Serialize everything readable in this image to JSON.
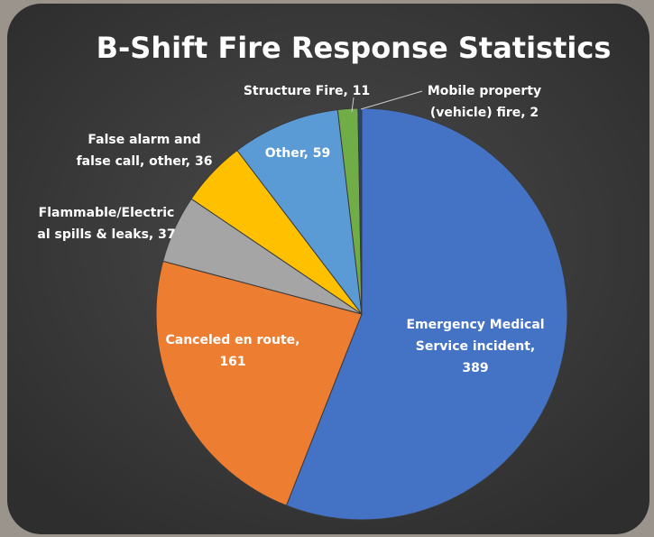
{
  "chart_data": {
    "type": "pie",
    "title": "B-Shift Fire Response Statistics",
    "labels": [
      [
        "Emergency Medical",
        "Service incident,",
        "389"
      ],
      [
        "Canceled en route,",
        "161"
      ],
      [
        "Flammable/Electric",
        "al spills & leaks, 37"
      ],
      [
        "False alarm and",
        "false call, other, 36"
      ],
      [
        "Other, 59"
      ],
      [
        "Structure Fire, 11"
      ],
      [
        "Mobile property",
        "(vehicle) fire, 2"
      ]
    ],
    "values": [
      389,
      161,
      37,
      36,
      59,
      11,
      2
    ],
    "colors": [
      "#4472c4",
      "#ed7d31",
      "#a5a5a5",
      "#ffc000",
      "#5b9bd5",
      "#70ad47",
      "#264478"
    ]
  }
}
